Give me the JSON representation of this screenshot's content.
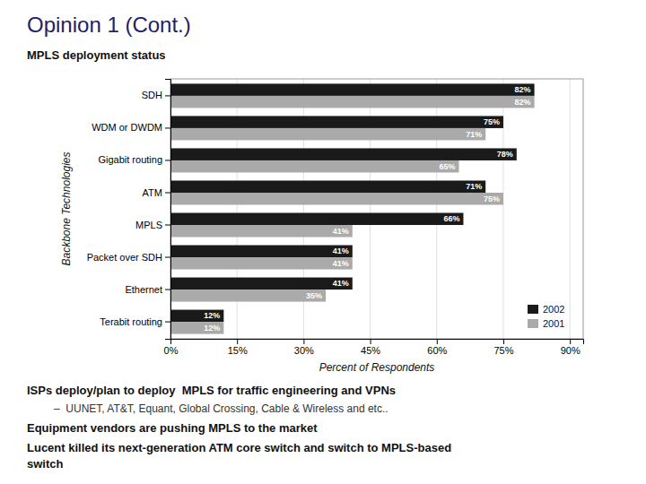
{
  "chart_data": {
    "type": "bar",
    "orientation": "horizontal",
    "title": "Opinion 1 (Cont.)",
    "annotations": [
      "MPLS deployment status",
      "ISPs deploy/plan to deploy  MPLS for traffic engineering and VPNs",
      "–  UUNET, AT&T, Equant, Global Crossing, Cable & Wireless and etc..",
      "Equipment vendors are pushing MPLS to the market",
      "Lucent killed its next-generation ATM core switch and switch to MPLS-based\nswitch"
    ],
    "categories": [
      "SDH",
      "WDM or DWDM",
      "Gigabit routing",
      "ATM",
      "MPLS",
      "Packet over SDH",
      "Ethernet",
      "Terabit routing"
    ],
    "series": [
      {
        "name": "2002",
        "color": "#1a1a1a",
        "values": [
          82,
          75,
          78,
          71,
          66,
          41,
          41,
          12
        ],
        "value_labels": [
          "82%",
          "75%",
          "78%",
          "71%",
          "66%",
          "41%",
          "41%",
          "12%"
        ]
      },
      {
        "name": "2001",
        "color": "#aaaaaa",
        "values": [
          82,
          71,
          65,
          75,
          41,
          41,
          35,
          12
        ],
        "value_labels": [
          "82%",
          "71%",
          "65%",
          "75%",
          "41%",
          "41%",
          "35%",
          "12%"
        ]
      }
    ],
    "xlabel": "Percent of Respondents",
    "ylabel": "Backbone Technologies",
    "xlim": [
      0,
      93
    ],
    "xticks": [
      {
        "value": 0,
        "label": "0%"
      },
      {
        "value": 15,
        "label": "15%"
      },
      {
        "value": 30,
        "label": "30%"
      },
      {
        "value": 45,
        "label": "45%"
      },
      {
        "value": 60,
        "label": "60%"
      },
      {
        "value": 75,
        "label": "75%"
      },
      {
        "value": 90,
        "label": "90%"
      }
    ],
    "grid": true,
    "data_labels": true,
    "legend": "lower right"
  }
}
